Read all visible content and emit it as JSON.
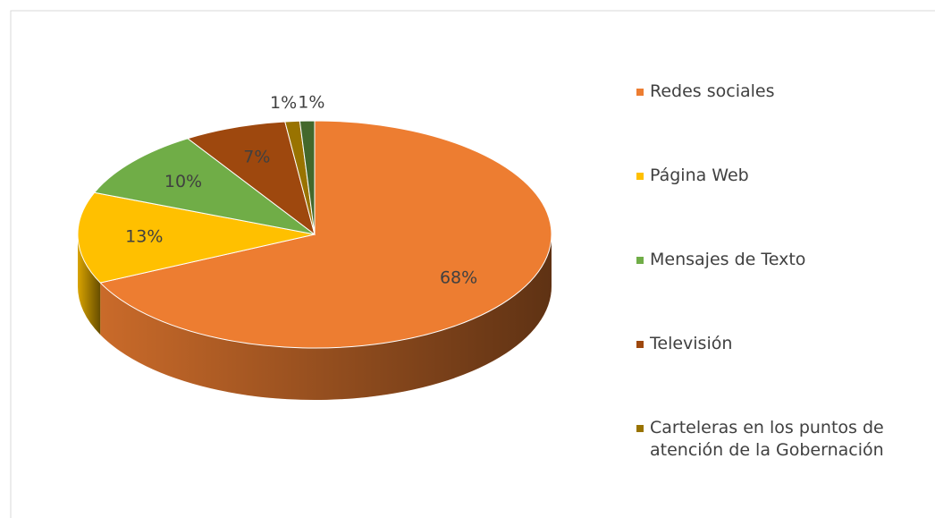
{
  "chart_data": {
    "type": "pie",
    "style": "3d",
    "categories": [
      "Redes sociales",
      "Página Web",
      "Mensajes de Texto",
      "Televisión",
      "Carteleras en los puntos de atención de la Gobernación",
      null
    ],
    "values": [
      68,
      13,
      10,
      7,
      1,
      1
    ],
    "value_labels": [
      "68%",
      "13%",
      "10%",
      "7%",
      "1%",
      "1%"
    ],
    "colors": [
      "#ED7D31",
      "#FFC000",
      "#70AD47",
      "#9E480E",
      "#997300",
      "#43682B"
    ],
    "legend": "right"
  }
}
